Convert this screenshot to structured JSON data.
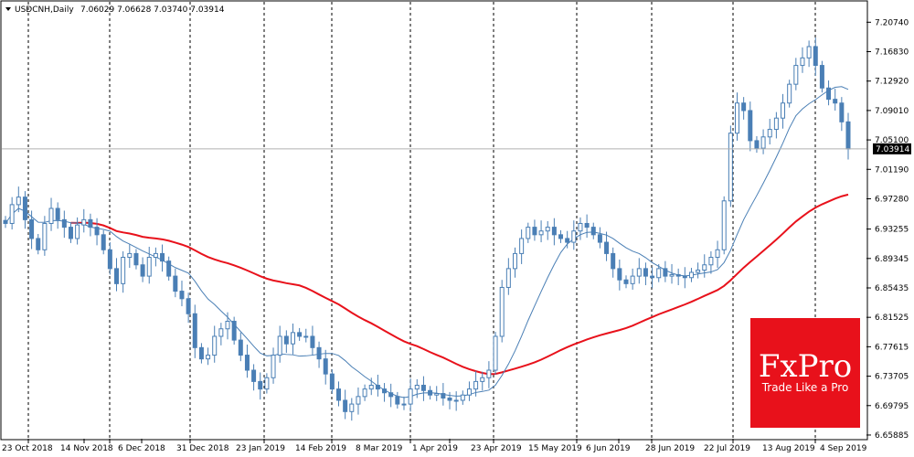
{
  "header": {
    "symbol_label": "USDCNH,Daily",
    "ohlc_text": "7.06029 7.06628 7.03740 7.03914"
  },
  "current_price_label": "7.03914",
  "logo": {
    "brand": "FxPro",
    "tagline": "Trade Like a Pro",
    "color": "#e8111b"
  },
  "colors": {
    "candles": "#4a7fb5",
    "ma_fast": "#4a7fb5",
    "ma_slow": "#e8111b",
    "grid": "#000000",
    "price_line": "#b0b0b0"
  },
  "chart_data": {
    "type": "line",
    "title": "USDCNH,Daily",
    "xlabel": "",
    "ylabel": "",
    "ylim": [
      6.6588,
      7.2175
    ],
    "y_ticks": [
      "7.20740",
      "7.16830",
      "7.12920",
      "7.09010",
      "7.05100",
      "7.01190",
      "6.97280",
      "6.93255",
      "6.89345",
      "6.85435",
      "6.81525",
      "6.77615",
      "6.73705",
      "6.69795",
      "6.65885"
    ],
    "x_ticks": [
      "23 Oct 2018",
      "14 Nov 2018",
      "6 Dec 2018",
      "31 Dec 2018",
      "23 Jan 2019",
      "14 Feb 2019",
      "8 Mar 2019",
      "1 Apr 2019",
      "23 Apr 2019",
      "15 May 2019",
      "6 Jun 2019",
      "28 Jun 2019",
      "22 Jul 2019",
      "13 Aug 2019",
      "4 Sep 2019"
    ],
    "grid": "vertical-dashed",
    "series": [
      {
        "values": [
          6.94,
          6.965,
          6.975,
          6.945,
          6.92,
          6.905,
          6.94,
          6.96,
          6.945,
          6.935,
          6.92,
          6.938,
          6.945,
          6.935,
          6.925,
          6.905,
          6.88,
          6.86,
          6.895,
          6.9,
          6.885,
          6.87,
          6.895,
          6.9,
          6.89,
          6.87,
          6.85,
          6.84,
          6.82,
          6.775,
          6.76,
          6.765,
          6.79,
          6.8,
          6.81,
          6.785,
          6.765,
          6.745,
          6.73,
          6.72,
          6.735,
          6.765,
          6.79,
          6.78,
          6.795,
          6.79,
          6.79,
          6.775,
          6.76,
          6.74,
          6.72,
          6.705,
          6.69,
          6.7,
          6.71,
          6.72,
          6.725,
          6.72,
          6.715,
          6.71,
          6.7,
          6.7,
          6.72,
          6.725,
          6.718,
          6.712,
          6.714,
          6.708,
          6.705,
          6.705,
          6.712,
          6.72,
          6.73,
          6.735,
          6.745,
          6.79,
          6.855,
          6.88,
          6.9,
          6.92,
          6.935,
          6.925,
          6.93,
          6.935,
          6.925,
          6.92,
          6.915,
          6.93,
          6.94,
          6.935,
          6.925,
          6.915,
          6.9,
          6.88,
          6.865,
          6.86,
          6.87,
          6.88,
          6.87,
          6.868,
          6.88,
          6.87,
          6.872,
          6.87,
          6.868,
          6.875,
          6.878,
          6.885,
          6.895,
          6.905,
          6.97,
          7.06,
          7.1,
          7.09,
          7.05,
          7.04,
          7.055,
          7.065,
          7.08,
          7.1,
          7.125,
          7.15,
          7.16,
          7.175,
          7.15,
          7.12,
          7.105,
          7.1,
          7.075,
          7.039
        ],
        "x_start": "2018-10-15",
        "x_end": "2019-09-12",
        "name": ""
      }
    ],
    "fast_ma_description": "",
    "slow_ma_description": ""
  }
}
